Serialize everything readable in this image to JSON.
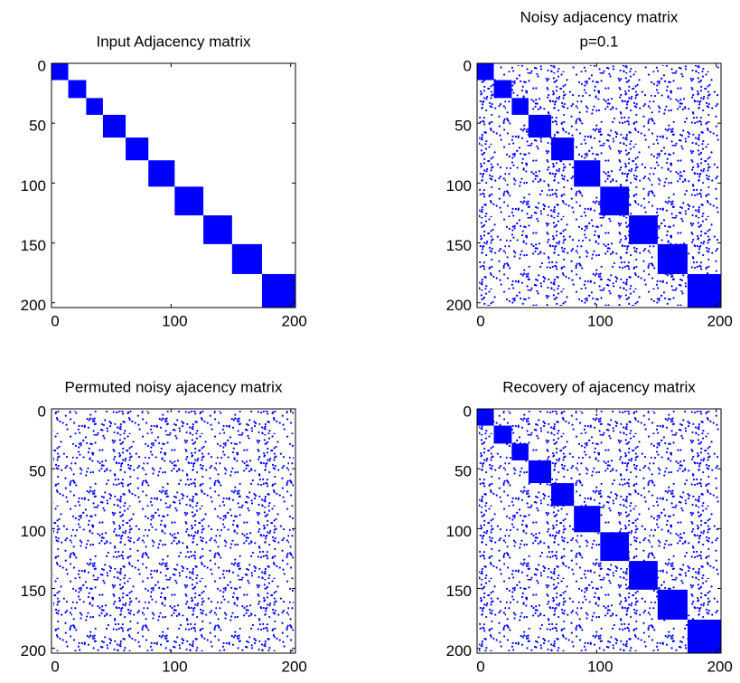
{
  "chart_data": [
    {
      "type": "spy",
      "title": [
        "Input Adjacency matrix"
      ],
      "color": "#0000ff",
      "noise": false,
      "blocks": [
        0,
        14,
        29,
        43,
        62,
        81,
        103,
        127,
        151,
        176,
        204
      ],
      "xlim": [
        0,
        204
      ],
      "ylim": [
        0,
        204
      ],
      "xticks": [
        0,
        100,
        200
      ],
      "yticks": [
        0,
        50,
        100,
        150,
        200
      ]
    },
    {
      "type": "spy",
      "title": [
        "Noisy adjacency matrix",
        "p=0.1"
      ],
      "color": "#0000ff",
      "noise": true,
      "blocks": [
        0,
        14,
        29,
        43,
        62,
        81,
        103,
        127,
        151,
        176,
        204
      ],
      "xlim": [
        0,
        204
      ],
      "ylim": [
        0,
        204
      ],
      "xticks": [
        0,
        100,
        200
      ],
      "yticks": [
        0,
        50,
        100,
        150,
        200
      ]
    },
    {
      "type": "spy",
      "title": [
        "Permuted noisy ajacency matrix"
      ],
      "color": "#0000ff",
      "noise": true,
      "xlim": [
        0,
        204
      ],
      "ylim": [
        0,
        204
      ],
      "xticks": [
        0,
        100,
        200
      ],
      "yticks": [
        0,
        50,
        100,
        150,
        200
      ]
    },
    {
      "type": "spy",
      "title": [
        "Recovery of ajacency matrix"
      ],
      "color": "#0000ff",
      "noise": true,
      "blocks": [
        0,
        14,
        29,
        43,
        62,
        81,
        103,
        127,
        151,
        176,
        204
      ],
      "xlim": [
        0,
        204
      ],
      "ylim": [
        0,
        204
      ],
      "xticks": [
        0,
        100,
        200
      ],
      "yticks": [
        0,
        50,
        100,
        150,
        200
      ]
    }
  ]
}
